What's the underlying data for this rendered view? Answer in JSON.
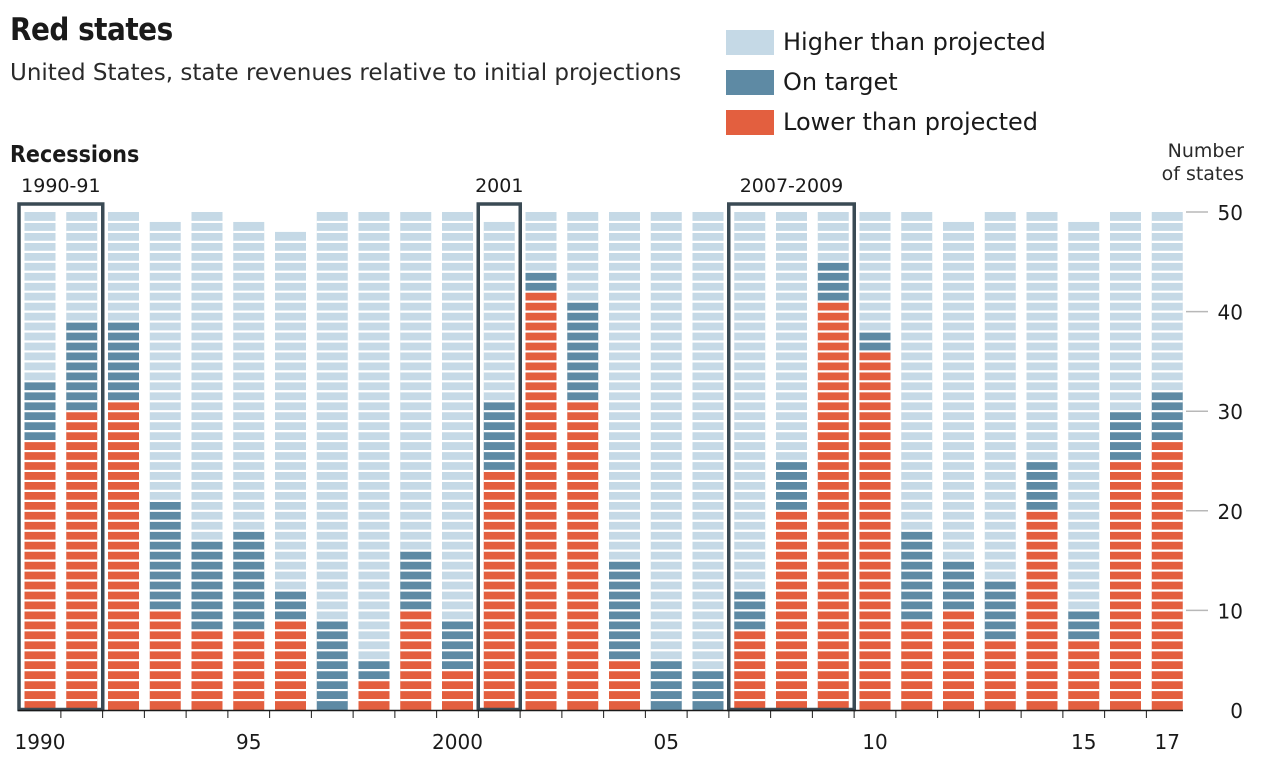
{
  "title": "Red states",
  "subtitle": "United States, state revenues relative to initial projections",
  "legend": [
    {
      "label": "Higher than projected",
      "color": "#c5d9e6"
    },
    {
      "label": "On target",
      "color": "#5e8aa4"
    },
    {
      "label": "Lower than projected",
      "color": "#e35f3f"
    }
  ],
  "recessions_label": "Recessions",
  "y_axis_unit": {
    "line1": "Number",
    "line2": "of states"
  },
  "recessions": [
    {
      "label": "1990-91",
      "start_year": 1990,
      "end_year": 1991
    },
    {
      "label": "2001",
      "start_year": 2001,
      "end_year": 2001
    },
    {
      "label": "2007-2009",
      "start_year": 2007,
      "end_year": 2009
    }
  ],
  "chart_data": {
    "type": "bar",
    "stacked": true,
    "title": "Red states",
    "subtitle": "United States, state revenues relative to initial projections",
    "xlabel": "",
    "ylabel": "Number of states",
    "ylim": [
      0,
      50
    ],
    "y_ticks": [
      0,
      10,
      20,
      30,
      40,
      50
    ],
    "x_tick_labels": [
      {
        "year": 1990,
        "label": "1990"
      },
      {
        "year": 1995,
        "label": "95"
      },
      {
        "year": 2000,
        "label": "2000"
      },
      {
        "year": 2005,
        "label": "05"
      },
      {
        "year": 2010,
        "label": "10"
      },
      {
        "year": 2015,
        "label": "15"
      },
      {
        "year": 2017,
        "label": "17"
      }
    ],
    "categories": [
      1990,
      1991,
      1992,
      1993,
      1994,
      1995,
      1996,
      1997,
      1998,
      1999,
      2000,
      2001,
      2002,
      2003,
      2004,
      2005,
      2006,
      2007,
      2008,
      2009,
      2010,
      2011,
      2012,
      2013,
      2014,
      2015,
      2016,
      2017
    ],
    "series": [
      {
        "name": "Lower than projected",
        "color": "#e35f3f",
        "values": [
          27,
          30,
          31,
          10,
          8,
          8,
          9,
          0,
          3,
          10,
          4,
          24,
          42,
          31,
          5,
          0,
          0,
          8,
          20,
          41,
          36,
          9,
          10,
          7,
          20,
          7,
          25,
          27
        ]
      },
      {
        "name": "On target",
        "color": "#5e8aa4",
        "values": [
          6,
          9,
          8,
          11,
          9,
          10,
          3,
          9,
          2,
          6,
          5,
          7,
          2,
          10,
          10,
          5,
          4,
          4,
          5,
          4,
          2,
          9,
          5,
          6,
          5,
          3,
          5,
          5
        ]
      },
      {
        "name": "Higher than projected",
        "color": "#c5d9e6",
        "values": [
          17,
          11,
          11,
          28,
          33,
          31,
          36,
          41,
          45,
          34,
          41,
          18,
          6,
          9,
          35,
          45,
          46,
          38,
          25,
          5,
          12,
          32,
          34,
          37,
          25,
          39,
          20,
          18
        ]
      }
    ],
    "grid": false,
    "legend_position": "top-right"
  }
}
